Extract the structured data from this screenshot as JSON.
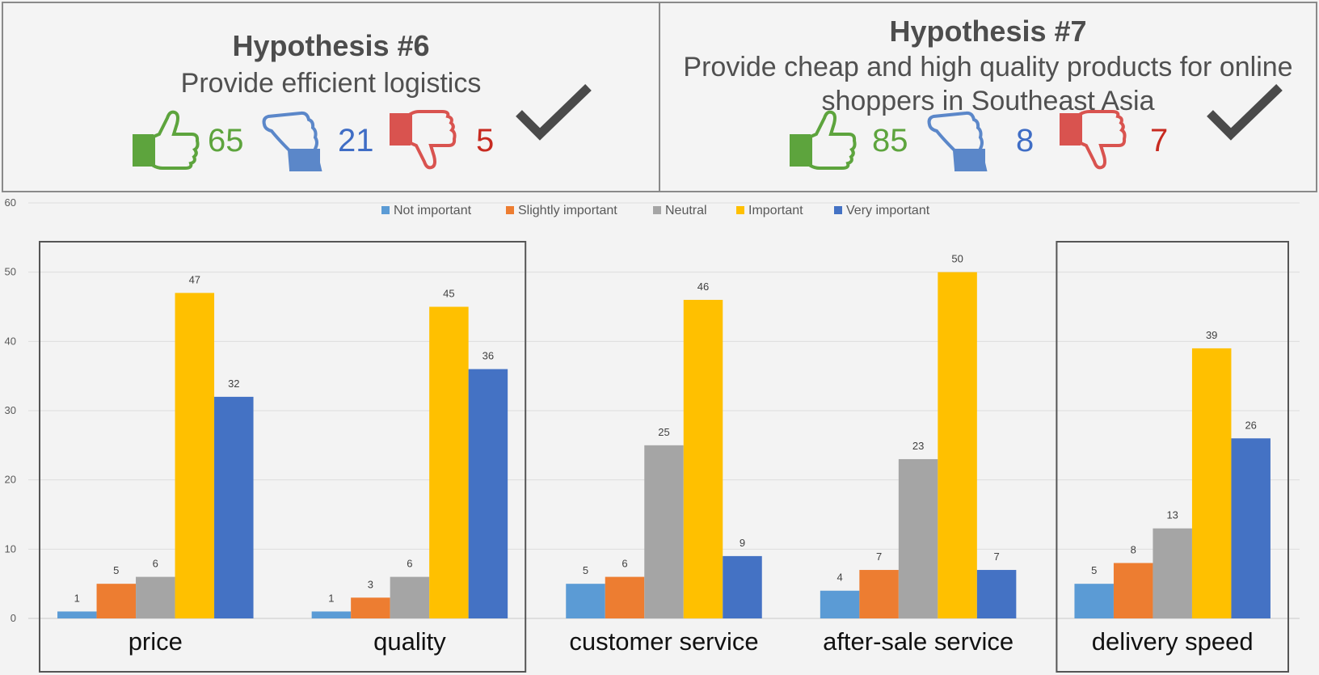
{
  "hypotheses": [
    {
      "title": "Hypothesis #6",
      "subtitle": "Provide efficient logistics",
      "agree": "65",
      "neutral": "21",
      "disagree": "5"
    },
    {
      "title": "Hypothesis #7",
      "subtitle": "Provide cheap and high quality products for online shoppers in Southeast Asia",
      "agree": "85",
      "neutral": "8",
      "disagree": "7"
    }
  ],
  "icons": {
    "agree": "thumbs-up-icon",
    "neutral": "thumb-sideways-icon",
    "disagree": "thumbs-down-icon",
    "verdict": "checkmark-icon"
  },
  "colors": {
    "agree": "#5da43d",
    "neutral": "#3f6dc5",
    "disagree": "#c72a20"
  },
  "chart_data": {
    "type": "bar",
    "categories": [
      "price",
      "quality",
      "customer service",
      "after-sale service",
      "delivery speed"
    ],
    "series": [
      {
        "name": "Not important",
        "color": "#5b9bd5",
        "values": [
          1,
          1,
          5,
          4,
          5
        ]
      },
      {
        "name": "Slightly important",
        "color": "#ed7d31",
        "values": [
          5,
          3,
          6,
          7,
          8
        ]
      },
      {
        "name": "Neutral",
        "color": "#a5a5a5",
        "values": [
          6,
          6,
          25,
          23,
          13
        ]
      },
      {
        "name": "Important",
        "color": "#ffc000",
        "values": [
          47,
          45,
          46,
          50,
          39
        ]
      },
      {
        "name": "Very important",
        "color": "#4472c4",
        "values": [
          32,
          36,
          9,
          7,
          26
        ]
      }
    ],
    "ylim": [
      0,
      60
    ],
    "yticks": [
      0,
      10,
      20,
      30,
      40,
      50,
      60
    ],
    "grid": true,
    "legend": "top",
    "highlighted_categories": [
      "price",
      "quality",
      "delivery speed"
    ]
  }
}
